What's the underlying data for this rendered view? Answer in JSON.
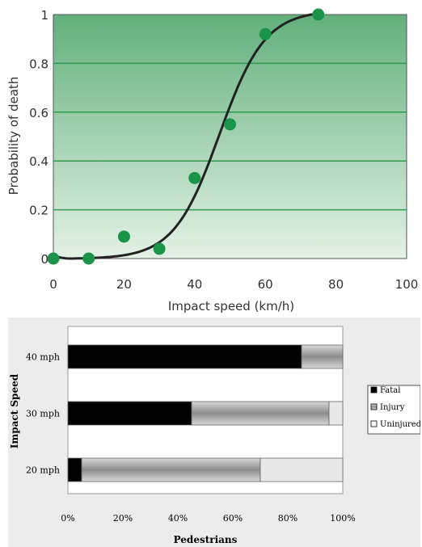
{
  "chart_data": [
    {
      "type": "scatter",
      "title": "",
      "xlabel": "Impact speed (km/h)",
      "ylabel": "Probability of death",
      "xlim": [
        0,
        100
      ],
      "ylim": [
        0,
        1
      ],
      "x_ticks": [
        "0",
        "20",
        "40",
        "60",
        "80",
        "100"
      ],
      "y_ticks": [
        "0",
        "0.2",
        "0.4",
        "0.6",
        "0.8",
        "1"
      ],
      "grid": "horizontal",
      "points": [
        {
          "x": 0,
          "y": 0.0
        },
        {
          "x": 10,
          "y": 0.0
        },
        {
          "x": 20,
          "y": 0.09
        },
        {
          "x": 30,
          "y": 0.04
        },
        {
          "x": 40,
          "y": 0.33
        },
        {
          "x": 50,
          "y": 0.55
        },
        {
          "x": 60,
          "y": 0.92
        },
        {
          "x": 75,
          "y": 1.0
        }
      ],
      "fit_curve": "logistic",
      "colors": {
        "plot_top": "#62b07c",
        "plot_bottom": "#e4f2e6",
        "grid": "#2f9a4f",
        "points": "#1a9448",
        "curve": "#222222"
      }
    },
    {
      "type": "bar",
      "orientation": "horizontal",
      "stacked": true,
      "title": "",
      "xlabel": "Pedestrians",
      "ylabel": "Impact Speed",
      "xlim": [
        0,
        100
      ],
      "x_ticks": [
        "0%",
        "20%",
        "40%",
        "60%",
        "80%",
        "100%"
      ],
      "categories": [
        "40 mph",
        "30 mph",
        "20 mph"
      ],
      "series": [
        {
          "name": "Fatal",
          "values": [
            85,
            45,
            5
          ],
          "color": "#000000"
        },
        {
          "name": "Injury",
          "values": [
            15,
            50,
            65
          ],
          "color": "#a6a6a6"
        },
        {
          "name": "Uninjured",
          "values": [
            0,
            5,
            30
          ],
          "color": "#e8e8e8"
        }
      ],
      "legend": "right"
    }
  ]
}
